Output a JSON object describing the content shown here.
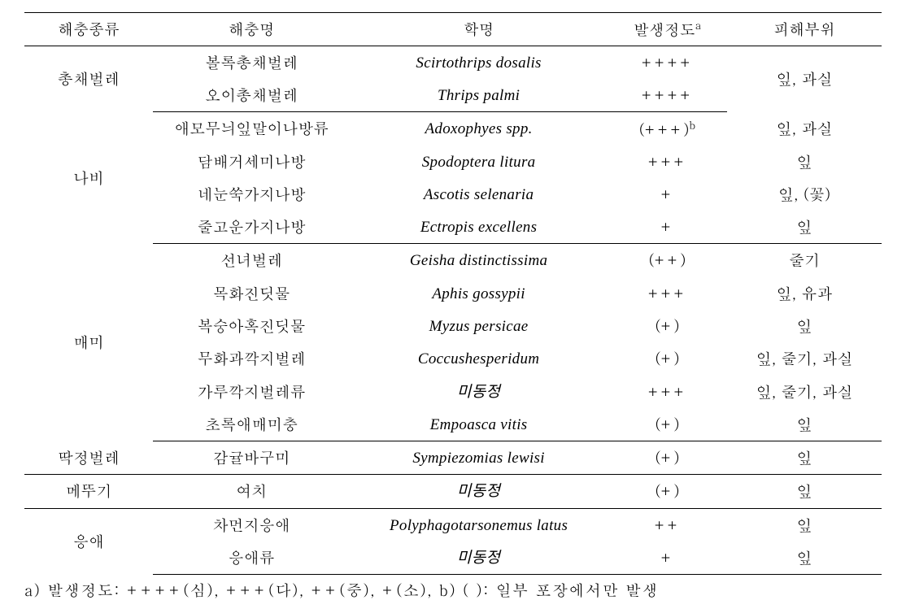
{
  "headers": [
    "해충종류",
    "해충명",
    "학명",
    "발생정도",
    "피해부위"
  ],
  "header_sup_a": "a",
  "groups": [
    {
      "category": "총채벌레",
      "rows": [
        {
          "name": "볼록총채벌레",
          "sci": "Scirtothrips dosalis",
          "level": "++++",
          "damage": "잎, 과실",
          "damage_rowspan": 2
        },
        {
          "name": "오이총채벌레",
          "sci": "Thrips palmi",
          "level": "++++"
        }
      ]
    },
    {
      "category": "나비",
      "rows": [
        {
          "name": "애모무늬잎말이나방류",
          "sci": "Adoxophyes spp.",
          "level": "(+++)",
          "level_sup": "b",
          "damage": "잎, 과실"
        },
        {
          "name": "담배거세미나방",
          "sci": "Spodoptera litura",
          "level": "+++",
          "damage": "잎"
        },
        {
          "name": "네눈쑥가지나방",
          "sci": "Ascotis selenaria",
          "level": "+",
          "damage": "잎, (꽃)"
        },
        {
          "name": "줄고운가지나방",
          "sci": "Ectropis excellens",
          "level": "+",
          "damage": "잎"
        }
      ]
    },
    {
      "category": "매미",
      "rows": [
        {
          "name": "선녀벌레",
          "sci": "Geisha distinctissima",
          "level": "(++)",
          "damage": "줄기"
        },
        {
          "name": "목화진딧물",
          "sci": "Aphis gossypii",
          "level": "+++",
          "damage": "잎, 유과"
        },
        {
          "name": "복숭아혹진딧물",
          "sci": "Myzus persicae",
          "level": "(+)",
          "damage": "잎"
        },
        {
          "name": "무화과깍지벌레",
          "sci": "Coccushesperidum",
          "level": "(+)",
          "damage": "잎, 줄기, 과실"
        },
        {
          "name": "가루깍지벌레류",
          "sci": "미동정",
          "sci_italic": true,
          "level": "+++",
          "damage": "잎, 줄기, 과실"
        },
        {
          "name": "초록애매미충",
          "sci": "Empoasca vitis",
          "level": "(+)",
          "damage": "잎"
        }
      ]
    },
    {
      "category": "딱정벌레",
      "rows": [
        {
          "name": "감귤바구미",
          "sci": "Sympiezomias lewisi",
          "level": "(+)",
          "damage": "잎"
        }
      ]
    },
    {
      "category": "메뚜기",
      "rows": [
        {
          "name": "여치",
          "sci": "미동정",
          "sci_italic": true,
          "level": "(+)",
          "damage": "잎"
        }
      ]
    },
    {
      "category": "응애",
      "rows": [
        {
          "name": "차먼지응애",
          "sci": "Polyphagotarsonemus latus",
          "level": "++",
          "damage": "잎"
        },
        {
          "name": "응애류",
          "sci": "미동정",
          "sci_italic": true,
          "level": "+",
          "damage": "잎"
        }
      ]
    }
  ],
  "footnote": "a) 발생정도: ++++(심), +++(다), ++(중), +(소), b) ( ): 일부 포장에서만 발생"
}
